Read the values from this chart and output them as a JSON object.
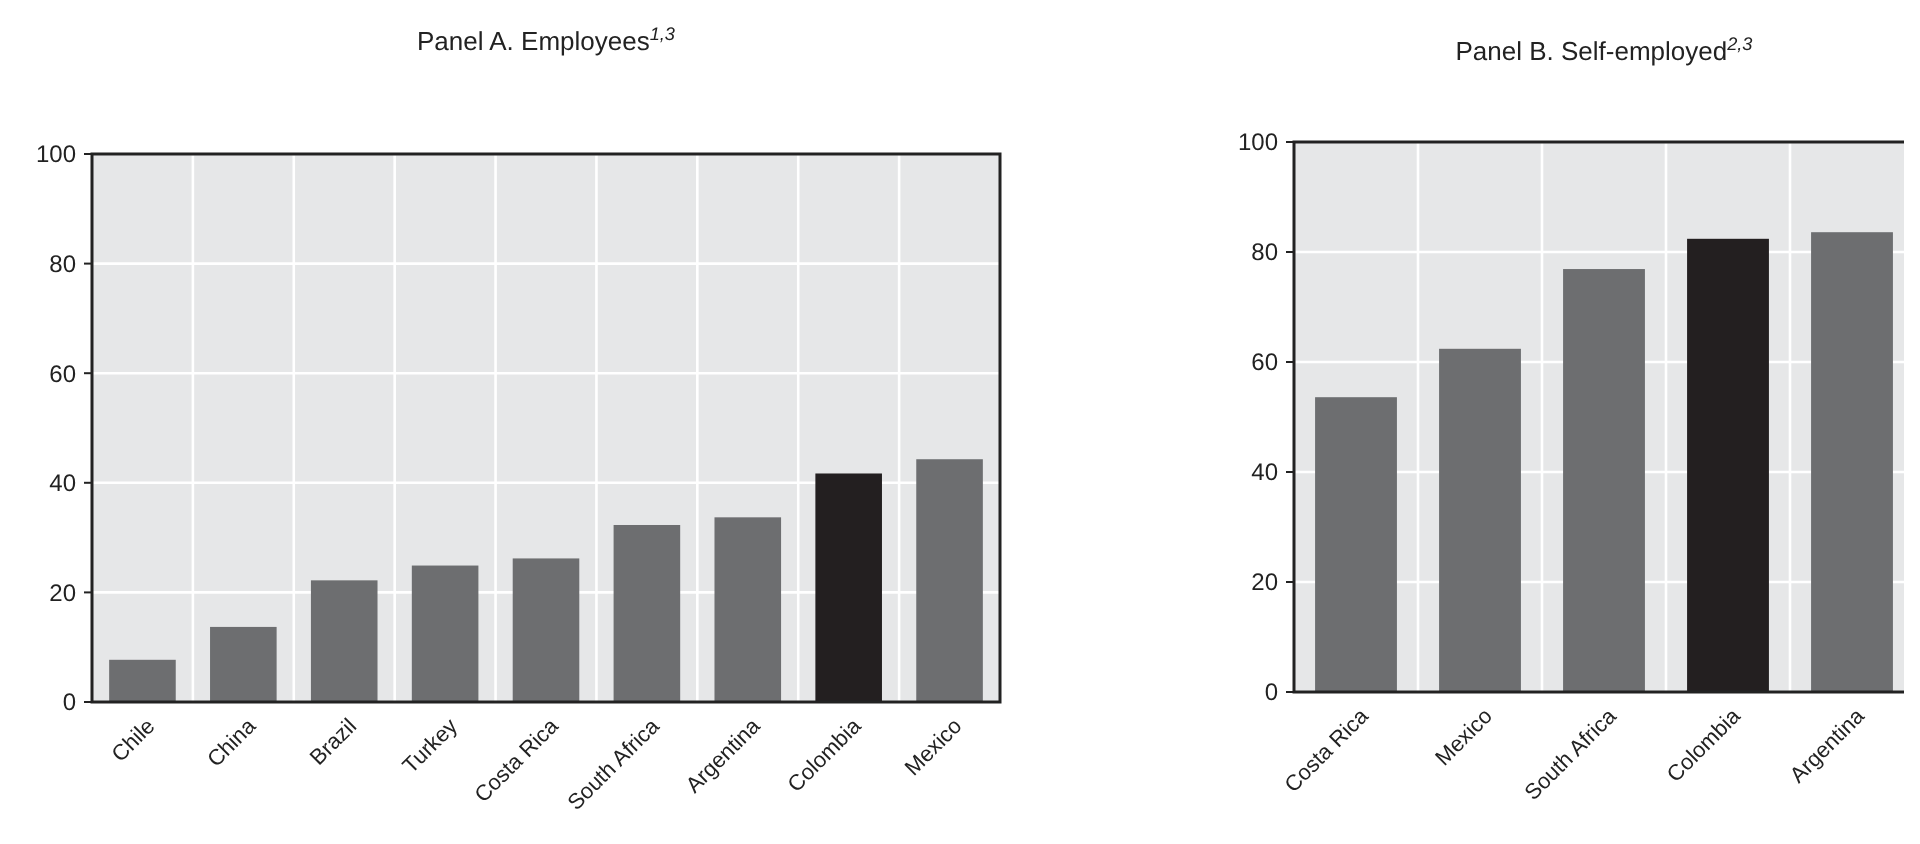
{
  "chart_data": [
    {
      "type": "bar",
      "title": "Panel A. Employees$^{1,3}$",
      "categories": [
        "Chile",
        "China",
        "Brazil",
        "Turkey",
        "Costa Rica",
        "South Africa",
        "Argentina",
        "Colombia",
        "Mexico"
      ],
      "values": [
        7.7,
        13.7,
        22.2,
        24.9,
        26.2,
        32.3,
        33.7,
        41.7,
        44.3
      ],
      "colors": [
        "#6d6e70",
        "#6d6e70",
        "#6d6e70",
        "#6d6e70",
        "#6d6e70",
        "#6d6e70",
        "#6d6e70",
        "#231f20",
        "#6d6e70"
      ],
      "ylim": [
        0,
        100
      ],
      "yticks": [
        0,
        20,
        40,
        60,
        80,
        100
      ],
      "grid": true
    },
    {
      "type": "bar",
      "title": "Panel B. Self-employed$^{2,3}$",
      "categories": [
        "Costa Rica",
        "Mexico",
        "South Africa",
        "Colombia",
        "Argentina"
      ],
      "values": [
        53.6,
        62.4,
        76.9,
        82.4,
        83.6
      ],
      "colors": [
        "#6d6e70",
        "#6d6e70",
        "#6d6e70",
        "#231f20",
        "#6d6e70"
      ],
      "ylim": [
        0,
        100
      ],
      "yticks": [
        0,
        20,
        40,
        60,
        80,
        100
      ],
      "grid": true
    }
  ]
}
